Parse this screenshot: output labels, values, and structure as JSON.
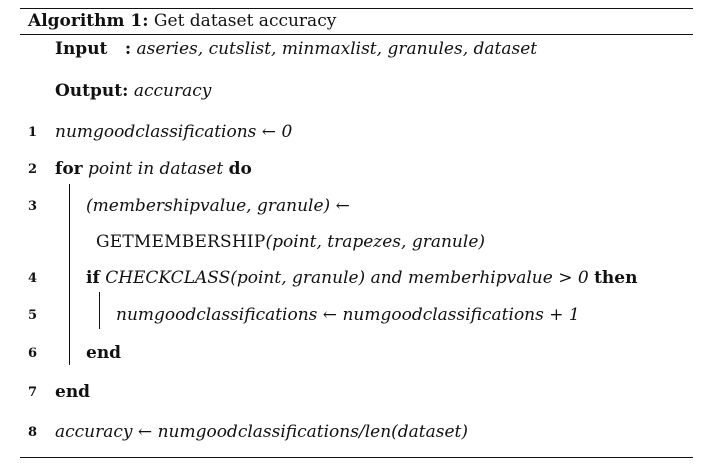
{
  "caption": {
    "label": "Algorithm 1:",
    "title": "Get dataset accuracy"
  },
  "input": {
    "label": "Input",
    "sep": ":",
    "value": "aseries, cutslist, minmaxlist, granules, dataset"
  },
  "output": {
    "label": "Output:",
    "value": "accuracy"
  },
  "lines": [
    {
      "num": "1",
      "text": "numgoodclassifications ← 0"
    },
    {
      "num": "2",
      "kw1": "for",
      "expr": "point in dataset",
      "kw2": "do"
    },
    {
      "num": "3",
      "text": "(membershipvalue, granule) ←"
    },
    {
      "num": "",
      "fn": "GETMEMBERSHIP",
      "args": "(point, trapezes, granule)"
    },
    {
      "num": "4",
      "kw1": "if",
      "expr": "CHECKCLASS(point, granule) and memberhipvalue > 0",
      "kw2": "then"
    },
    {
      "num": "5",
      "text": "numgoodclassifications ← numgoodclassifications + 1"
    },
    {
      "num": "6",
      "kw1": "end"
    },
    {
      "num": "7",
      "kw1": "end"
    },
    {
      "num": "8",
      "text": "accuracy ← numgoodclassifications/len(dataset)"
    }
  ]
}
